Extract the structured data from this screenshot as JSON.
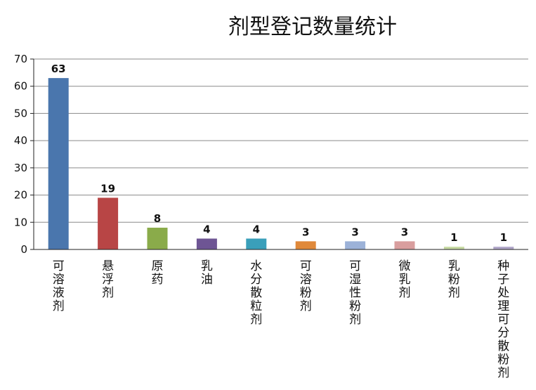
{
  "chart_data": {
    "type": "bar",
    "title": "剂型登记数量统计",
    "xlabel": "",
    "ylabel": "",
    "categories": [
      "可溶液剂",
      "悬浮剂",
      "原药",
      "乳油",
      "水分散粒剂",
      "可溶粉剂",
      "可湿性粉剂",
      "微乳剂",
      "乳粉剂",
      "种子处理可分散粉剂"
    ],
    "values": [
      63,
      19,
      8,
      4,
      4,
      3,
      3,
      3,
      1,
      1
    ],
    "colors": [
      "#4a76ad",
      "#b84545",
      "#8aab4a",
      "#6e5594",
      "#3a9fba",
      "#e0893a",
      "#9cb2d8",
      "#d99e9e",
      "#c6d9a2",
      "#b0a6c8"
    ],
    "ylim": [
      0,
      70
    ],
    "yticks": [
      0,
      10,
      20,
      30,
      40,
      50,
      60,
      70
    ],
    "grid": true,
    "legend": "none"
  }
}
